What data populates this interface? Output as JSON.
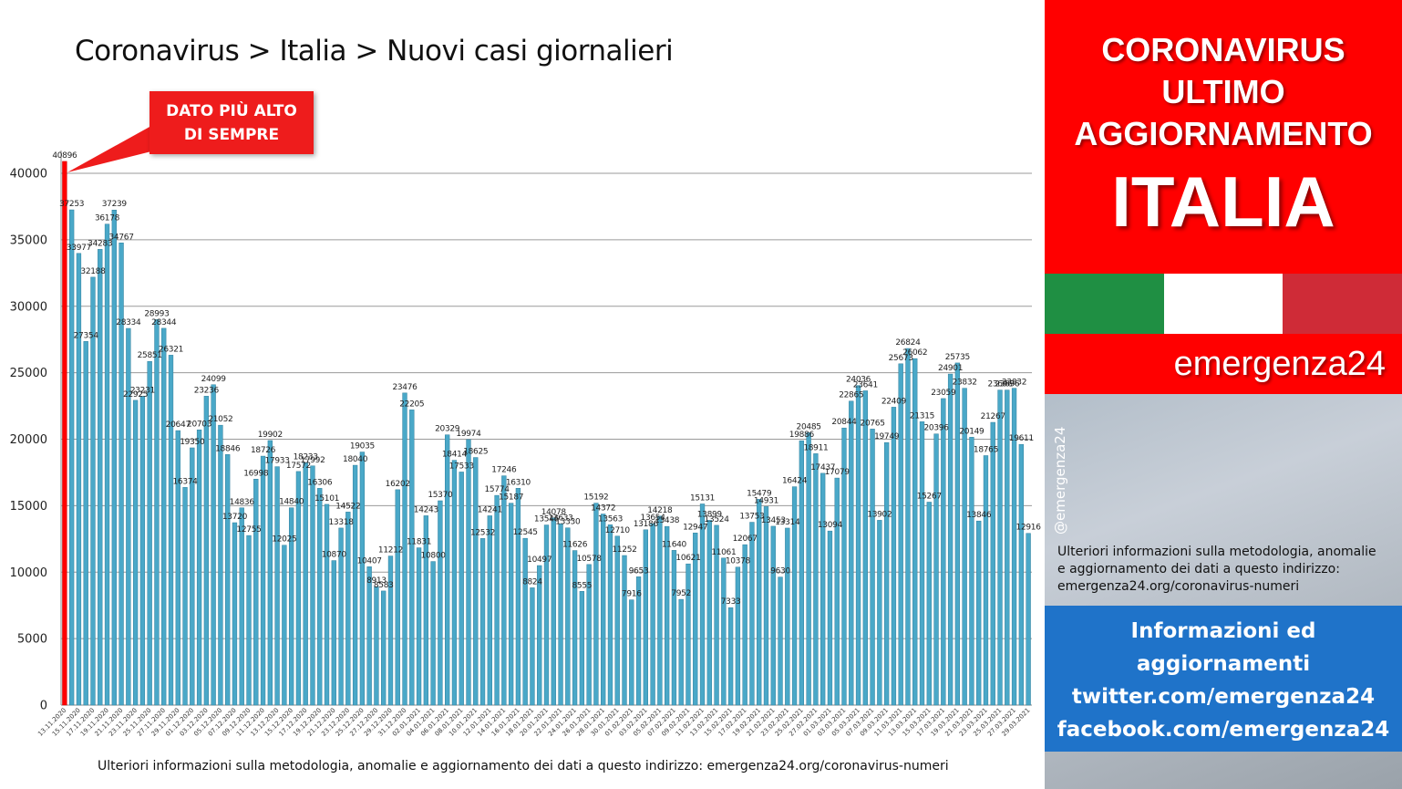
{
  "title": "Coronavirus > Italia > Nuovi casi giornalieri",
  "callout": {
    "line1": "DATO PIÙ ALTO",
    "line2": "DI SEMPRE"
  },
  "footer_note": "Ulteriori informazioni sulla metodologia, anomalie e aggiornamento dei dati a questo indirizzo: emergenza24.org/coronavirus-numeri",
  "panel": {
    "heading": [
      "CORONAVIRUS",
      "ULTIMO",
      "AGGIORNAMENTO"
    ],
    "country": "ITALIA",
    "brand": "emergenza24",
    "handle": "@emergenza24",
    "note": [
      "Ulteriori informazioni sulla metodologia, anomalie",
      "e aggiornamento dei dati a questo indirizzo:",
      "emergenza24.org/coronavirus-numeri"
    ],
    "info": [
      "Informazioni ed",
      "aggiornamenti",
      "twitter.com/emergenza24",
      "facebook.com/emergenza24"
    ],
    "colors": {
      "red": "#ff0000",
      "flag_green": "#1f8f43",
      "flag_white": "#ffffff",
      "flag_red": "#cf2b37",
      "info_blue": "#1f73c9"
    }
  },
  "chart_data": {
    "type": "bar",
    "title": "Coronavirus > Italia > Nuovi casi giornalieri",
    "start_date": "13.11.2020",
    "ylim": [
      0,
      42000
    ],
    "yticks": [
      0,
      5000,
      10000,
      15000,
      20000,
      25000,
      30000,
      35000,
      40000
    ],
    "grid": true,
    "bar_color": "#4aa8c8",
    "highlight_color": "#ff0000",
    "highlight_index": 0,
    "x_labels": [
      "13.11.2020",
      "15.11.2020",
      "17.11.2020",
      "19.11.2020",
      "21.11.2020",
      "23.11.2020",
      "25.11.2020",
      "27.11.2020",
      "29.11.2020",
      "01.12.2020",
      "03.12.2020",
      "05.12.2020",
      "07.12.2020",
      "09.12.2020",
      "11.12.2020",
      "13.12.2020",
      "15.12.2020",
      "17.12.2020",
      "19.12.2020",
      "21.12.2020",
      "23.12.2020",
      "25.12.2020",
      "27.12.2020",
      "29.12.2020",
      "31.12.2020",
      "02.01.2021",
      "04.01.2021",
      "06.01.2021",
      "08.01.2021",
      "10.01.2021",
      "12.01.2021",
      "14.01.2021",
      "16.01.2021",
      "18.01.2021",
      "20.01.2021",
      "22.01.2021",
      "24.01.2021",
      "26.01.2021",
      "28.01.2021",
      "30.01.2021",
      "01.02.2021",
      "03.02.2021",
      "05.02.2021",
      "07.02.2021",
      "09.02.2021",
      "11.02.2021",
      "13.02.2021",
      "15.02.2021",
      "17.02.2021",
      "19.02.2021",
      "21.02.2021",
      "23.02.2021",
      "25.02.2021",
      "27.02.2021",
      "01.03.2021",
      "03.03.2021",
      "05.03.2021",
      "07.03.2021",
      "09.03.2021",
      "11.03.2021",
      "13.03.2021",
      "15.03.2021",
      "17.03.2021",
      "19.03.2021",
      "21.03.2021",
      "23.03.2021",
      "25.03.2021",
      "27.03.2021",
      "29.03.2021"
    ],
    "values": [
      40896,
      37253,
      33977,
      27354,
      32188,
      34283,
      36178,
      37239,
      34767,
      28334,
      22925,
      23231,
      25851,
      28993,
      28344,
      26321,
      20647,
      16374,
      19350,
      20703,
      23236,
      24099,
      21052,
      18846,
      13720,
      14836,
      12755,
      16998,
      18726,
      19902,
      17933,
      12025,
      14840,
      17572,
      18233,
      17992,
      16306,
      15101,
      10870,
      13318,
      14522,
      18040,
      19035,
      10407,
      8913,
      8583,
      11212,
      16202,
      23476,
      22205,
      11831,
      14243,
      10800,
      15370,
      20329,
      18414,
      17533,
      19974,
      18625,
      12532,
      14241,
      15774,
      17246,
      15187,
      16310,
      12545,
      8824,
      10497,
      13546,
      14078,
      13633,
      13330,
      11626,
      8555,
      10578,
      15192,
      14372,
      13563,
      12710,
      11252,
      7916,
      9653,
      13186,
      13654,
      14218,
      13438,
      11640,
      7952,
      10621,
      12947,
      15131,
      13899,
      13524,
      11061,
      7333,
      10378,
      12067,
      13753,
      15479,
      14931,
      13453,
      9630,
      13314,
      16424,
      19886,
      20485,
      18911,
      17437,
      13094,
      17079,
      20844,
      22865,
      24036,
      23641,
      20765,
      13902,
      19749,
      22409,
      25673,
      26824,
      26062,
      21315,
      15267,
      20396,
      23059,
      24901,
      25735,
      23832,
      20149,
      13846,
      18765,
      21267,
      23696,
      23696,
      23832,
      19611,
      12916
    ]
  }
}
